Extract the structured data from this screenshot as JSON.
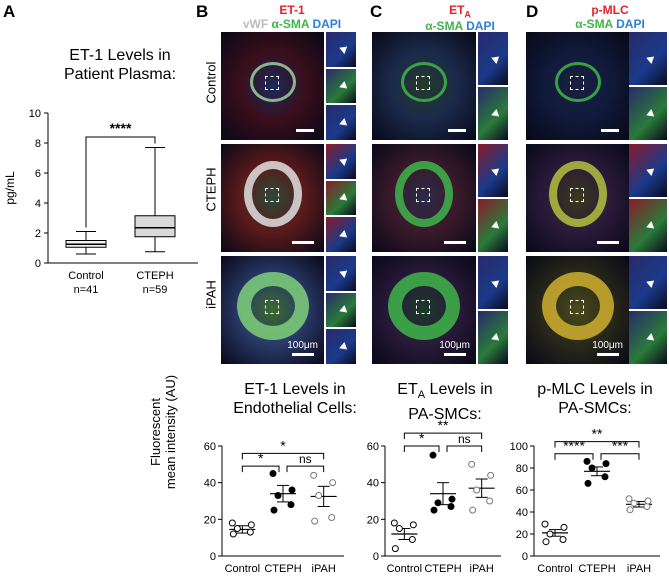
{
  "panels": {
    "a": {
      "letter": "A",
      "title_line1": "ET-1 Levels in",
      "title_line2": "Patient Plasma:"
    },
    "b": {
      "letter": "B",
      "stain_1": "vWF",
      "stain_2": "ET-1",
      "stain_3": "α-SMA",
      "stain_4": "DAPI",
      "scale": "100μm",
      "title_line1": "ET-1 Levels in",
      "title_line2": "Endothelial Cells:"
    },
    "c": {
      "letter": "C",
      "stain_1": "ET",
      "stain_1_sub": "A",
      "stain_2": "α-SMA",
      "stain_3": "DAPI",
      "scale": "100μm",
      "title_line1": "ET",
      "title_sub": "A",
      "title_line1_rest": " Levels in",
      "title_line2": "PA-SMCs:"
    },
    "d": {
      "letter": "D",
      "stain_1": "p-MLC",
      "stain_2": "α-SMA",
      "stain_3": "DAPI",
      "scale": "100μm",
      "title_line1": "p-MLC Levels in",
      "title_line2": "PA-SMCs:"
    }
  },
  "rows": [
    "Control",
    "CTEPH",
    "iPAH"
  ],
  "shared_ylabel_line1": "Fluorescent",
  "shared_ylabel_line2": "mean intensity (AU)",
  "colors": {
    "stain_red": "#e8202a",
    "stain_green": "#3fb54a",
    "stain_blue": "#2d7fd6",
    "stain_gray": "#bdbdbd"
  },
  "chart_data": [
    {
      "id": "a",
      "type": "box",
      "ylabel": "pg/mL",
      "ylim": [
        0,
        10
      ],
      "yticks": [
        0,
        2,
        4,
        6,
        8,
        10
      ],
      "categories": [
        "Control",
        "CTEPH"
      ],
      "n_labels": [
        "n=41",
        "n=59"
      ],
      "boxes": [
        {
          "min": 0.6,
          "q1": 1.05,
          "median": 1.25,
          "q3": 1.5,
          "max": 2.1,
          "fill": "#f2f2f2"
        },
        {
          "min": 0.75,
          "q1": 1.75,
          "median": 2.35,
          "q3": 3.15,
          "max": 7.7,
          "fill": "#d9d9d9"
        }
      ],
      "significance": [
        {
          "from": 0,
          "to": 1,
          "label": "****",
          "y": 8.4
        }
      ]
    },
    {
      "id": "b",
      "type": "scatter",
      "ylim": [
        0,
        60
      ],
      "yticks": [
        0,
        20,
        40,
        60
      ],
      "categories": [
        "Control",
        "CTEPH",
        "iPAH"
      ],
      "points": [
        [
          12,
          13,
          15,
          17,
          18
        ],
        [
          25,
          28,
          33,
          36,
          45
        ],
        [
          19,
          21,
          33,
          40,
          44
        ]
      ],
      "markers": [
        "open",
        "filled",
        "gray"
      ],
      "means": [
        14.5,
        34,
        32.5
      ],
      "errors": [
        2,
        4.5,
        5.5
      ],
      "significance": [
        {
          "from": 0,
          "to": 2,
          "label": "*",
          "y": 56
        },
        {
          "from": 0,
          "to": 1,
          "label": "*",
          "y": 49
        },
        {
          "from": 1,
          "to": 2,
          "label": "ns",
          "y": 49
        }
      ]
    },
    {
      "id": "c",
      "type": "scatter",
      "ylim": [
        0,
        60
      ],
      "yticks": [
        0,
        20,
        40,
        60
      ],
      "categories": [
        "Control",
        "CTEPH",
        "iPAH"
      ],
      "points": [
        [
          4,
          9,
          15,
          17,
          18
        ],
        [
          25,
          27,
          29,
          31,
          55
        ],
        [
          25,
          30,
          36,
          44,
          50
        ]
      ],
      "markers": [
        "open",
        "filled",
        "gray"
      ],
      "means": [
        12,
        34,
        37
      ],
      "errors": [
        3,
        6,
        5
      ],
      "significance": [
        {
          "from": 0,
          "to": 2,
          "label": "**",
          "y": 67
        },
        {
          "from": 0,
          "to": 1,
          "label": "*",
          "y": 60
        },
        {
          "from": 1,
          "to": 2,
          "label": "ns",
          "y": 60
        }
      ]
    },
    {
      "id": "d",
      "type": "scatter",
      "ylim": [
        0,
        100
      ],
      "yticks": [
        0,
        20,
        40,
        60,
        80,
        100
      ],
      "categories": [
        "Control",
        "CTEPH",
        "iPAH"
      ],
      "points": [
        [
          13,
          15,
          20,
          26,
          29
        ],
        [
          66,
          72,
          80,
          84,
          86
        ],
        [
          42,
          45,
          48,
          50,
          52
        ]
      ],
      "markers": [
        "open",
        "filled",
        "gray"
      ],
      "means": [
        21,
        77,
        47
      ],
      "errors": [
        3,
        4,
        2.5
      ],
      "significance": [
        {
          "from": 0,
          "to": 2,
          "label": "**",
          "y": 104
        },
        {
          "from": 0,
          "to": 1,
          "label": "****",
          "y": 93
        },
        {
          "from": 1,
          "to": 2,
          "label": "***",
          "y": 93
        }
      ]
    }
  ]
}
